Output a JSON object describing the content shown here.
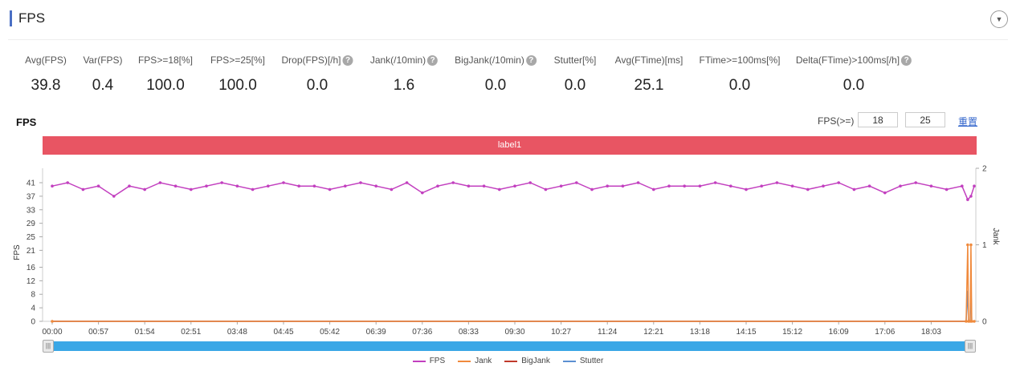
{
  "header": {
    "title": "FPS",
    "collapse_icon": "chevron-down-circle-icon"
  },
  "stats": [
    {
      "label": "Avg(FPS)",
      "value": "39.8",
      "help": false
    },
    {
      "label": "Var(FPS)",
      "value": "0.4",
      "help": false
    },
    {
      "label": "FPS>=18[%]",
      "value": "100.0",
      "help": false
    },
    {
      "label": "FPS>=25[%]",
      "value": "100.0",
      "help": false
    },
    {
      "label": "Drop(FPS)[/h]",
      "value": "0.0",
      "help": true
    },
    {
      "label": "Jank(/10min)",
      "value": "1.6",
      "help": true
    },
    {
      "label": "BigJank(/10min)",
      "value": "0.0",
      "help": true
    },
    {
      "label": "Stutter[%]",
      "value": "0.0",
      "help": false
    },
    {
      "label": "Avg(FTime)[ms]",
      "value": "25.1",
      "help": false
    },
    {
      "label": "FTime>=100ms[%]",
      "value": "0.0",
      "help": false
    },
    {
      "label": "Delta(FTime)>100ms[/h]",
      "value": "0.0",
      "help": true
    }
  ],
  "controls": {
    "chart_title": "FPS",
    "threshold_label": "FPS(>=)",
    "threshold1": "18",
    "threshold2": "25",
    "reset_label": "重置"
  },
  "band": {
    "label": "label1",
    "color": "#e85563"
  },
  "chart_data": {
    "type": "line",
    "ylabel": "FPS",
    "y2label": "Jank",
    "yticks": [
      0,
      4,
      8,
      12,
      16,
      21,
      25,
      29,
      33,
      37,
      41
    ],
    "y2ticks": [
      0,
      1,
      2
    ],
    "y2lim": [
      0,
      2
    ],
    "xticks": [
      "00:00",
      "00:57",
      "01:54",
      "02:51",
      "03:48",
      "04:45",
      "05:42",
      "06:39",
      "07:36",
      "08:33",
      "09:30",
      "10:27",
      "11:24",
      "12:21",
      "13:18",
      "14:15",
      "15:12",
      "16:09",
      "17:06",
      "18:03"
    ],
    "legend_position": "bottom",
    "series": [
      {
        "name": "FPS",
        "color": "#c23fbf",
        "axis": "left",
        "points": [
          [
            "00:00",
            40
          ],
          [
            "00:19",
            41
          ],
          [
            "00:38",
            39
          ],
          [
            "00:57",
            40
          ],
          [
            "01:16",
            37
          ],
          [
            "01:35",
            40
          ],
          [
            "01:54",
            39
          ],
          [
            "02:13",
            41
          ],
          [
            "02:32",
            40
          ],
          [
            "02:51",
            39
          ],
          [
            "03:10",
            40
          ],
          [
            "03:29",
            41
          ],
          [
            "03:48",
            40
          ],
          [
            "04:07",
            39
          ],
          [
            "04:26",
            40
          ],
          [
            "04:45",
            41
          ],
          [
            "05:04",
            40
          ],
          [
            "05:23",
            40
          ],
          [
            "05:42",
            39
          ],
          [
            "06:01",
            40
          ],
          [
            "06:20",
            41
          ],
          [
            "06:39",
            40
          ],
          [
            "06:58",
            39
          ],
          [
            "07:17",
            41
          ],
          [
            "07:36",
            38
          ],
          [
            "07:55",
            40
          ],
          [
            "08:14",
            41
          ],
          [
            "08:33",
            40
          ],
          [
            "08:52",
            40
          ],
          [
            "09:11",
            39
          ],
          [
            "09:30",
            40
          ],
          [
            "09:49",
            41
          ],
          [
            "10:08",
            39
          ],
          [
            "10:27",
            40
          ],
          [
            "10:46",
            41
          ],
          [
            "11:05",
            39
          ],
          [
            "11:24",
            40
          ],
          [
            "11:43",
            40
          ],
          [
            "12:02",
            41
          ],
          [
            "12:21",
            39
          ],
          [
            "12:40",
            40
          ],
          [
            "12:59",
            40
          ],
          [
            "13:18",
            40
          ],
          [
            "13:37",
            41
          ],
          [
            "13:56",
            40
          ],
          [
            "14:15",
            39
          ],
          [
            "14:34",
            40
          ],
          [
            "14:53",
            41
          ],
          [
            "15:12",
            40
          ],
          [
            "15:31",
            39
          ],
          [
            "15:50",
            40
          ],
          [
            "16:09",
            41
          ],
          [
            "16:28",
            39
          ],
          [
            "16:47",
            40
          ],
          [
            "17:06",
            38
          ],
          [
            "17:25",
            40
          ],
          [
            "17:44",
            41
          ],
          [
            "18:03",
            40
          ],
          [
            "18:22",
            39
          ],
          [
            "18:41",
            40
          ],
          [
            "18:48",
            36
          ],
          [
            "18:52",
            37
          ],
          [
            "18:56",
            40
          ]
        ]
      },
      {
        "name": "Jank",
        "color": "#f08a3c",
        "axis": "right",
        "points": [
          [
            "00:00",
            0
          ],
          [
            "18:46",
            0
          ],
          [
            "18:48",
            1
          ],
          [
            "18:49",
            0
          ],
          [
            "18:51",
            0
          ],
          [
            "18:52",
            1
          ],
          [
            "18:53",
            0
          ],
          [
            "18:56",
            0
          ]
        ]
      },
      {
        "name": "BigJank",
        "color": "#c0392b",
        "axis": "right",
        "points": [
          [
            "00:00",
            0
          ],
          [
            "18:56",
            0
          ]
        ]
      },
      {
        "name": "Stutter",
        "color": "#5b8fd1",
        "axis": "right",
        "points": [
          [
            "00:00",
            0
          ],
          [
            "18:46",
            0
          ],
          [
            "18:48",
            0.4
          ],
          [
            "18:49",
            0
          ],
          [
            "18:51",
            0
          ],
          [
            "18:52",
            0.5
          ],
          [
            "18:53",
            0
          ],
          [
            "18:56",
            0
          ]
        ]
      }
    ]
  }
}
